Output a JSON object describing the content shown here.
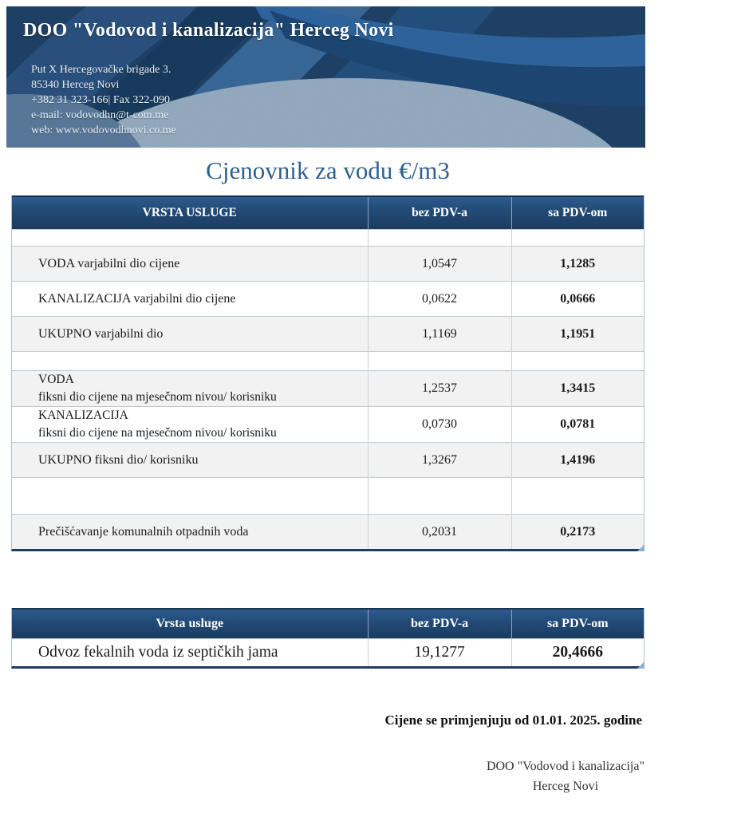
{
  "banner": {
    "company_name": "DOO \"Vodovod i kanalizacija\" Herceg Novi",
    "address_line1": "Put X Hercegovačke brigade 3.",
    "address_line2": "85340 Herceg Novi",
    "phone_line": "+382 31 323-166| Fax 322-090",
    "email_line": "e-mail: vodovodhn@t-com.me",
    "web_line": "web: www.vodovodhnovi.co.me"
  },
  "title": "Cjenovnik za vodu €/m3",
  "water_table": {
    "headers": [
      "VRSTA USLUGE",
      "bez PDV-a",
      "sa PDV-om"
    ],
    "rows": [
      {
        "type": "sp-sm"
      },
      {
        "type": "data",
        "shaded": true,
        "service": "VODA varjabilni dio cijene",
        "bez_pdv": "1,0547",
        "sa_pdv": "1,1285"
      },
      {
        "type": "data",
        "shaded": false,
        "service": "KANALIZACIJA varjabilni dio cijene",
        "bez_pdv": "0,0622",
        "sa_pdv": "0,0666"
      },
      {
        "type": "data",
        "shaded": true,
        "service": "UKUPNO varjabilni dio",
        "bez_pdv": "1,1169",
        "sa_pdv": "1,1951"
      },
      {
        "type": "sp-md"
      },
      {
        "type": "data",
        "shaded": true,
        "service": "VODA",
        "service_line2": "fiksni dio cijene na mjesečnom nivou/ korisniku",
        "bez_pdv": "1,2537",
        "sa_pdv": "1,3415"
      },
      {
        "type": "data",
        "shaded": false,
        "service": "KANALIZACIJA",
        "service_line2": "fiksni dio cijene na mjesečnom nivou/ korisniku",
        "bez_pdv": "0,0730",
        "sa_pdv": "0,0781"
      },
      {
        "type": "data",
        "shaded": true,
        "service": "UKUPNO fiksni dio/ korisniku",
        "bez_pdv": "1,3267",
        "sa_pdv": "1,4196"
      },
      {
        "type": "sp-lg"
      },
      {
        "type": "data",
        "shaded": true,
        "service": "Prečišćavanje komunalnih otpadnih voda",
        "bez_pdv": "0,2031",
        "sa_pdv": "0,2173"
      }
    ]
  },
  "septic_table": {
    "headers": [
      "Vrsta usluge",
      "bez PDV-a",
      "sa PDV-om"
    ],
    "rows": [
      {
        "type": "data",
        "shaded": false,
        "service": "Odvoz fekalnih voda iz septičkih jama",
        "bez_pdv": "19,1277",
        "sa_pdv": "20,4666"
      }
    ]
  },
  "footer": {
    "effective_date_note": "Cijene se primjenjuju od 01.01. 2025. godine",
    "signature_line1": "DOO \"Vodovod i kanalizacija\"",
    "signature_line2": "Herceg Novi"
  },
  "colors": {
    "header_navy": "#1d3e62",
    "header_gradient_top": "#2e5c8f",
    "title_blue": "#2d6090",
    "shaded_row": "#f2f2f2",
    "row_border": "#bfcad4",
    "banner_base": "#1e3f63",
    "banner_light_texture": "#a7bacc",
    "corner_notch": "#8fb0cf"
  }
}
